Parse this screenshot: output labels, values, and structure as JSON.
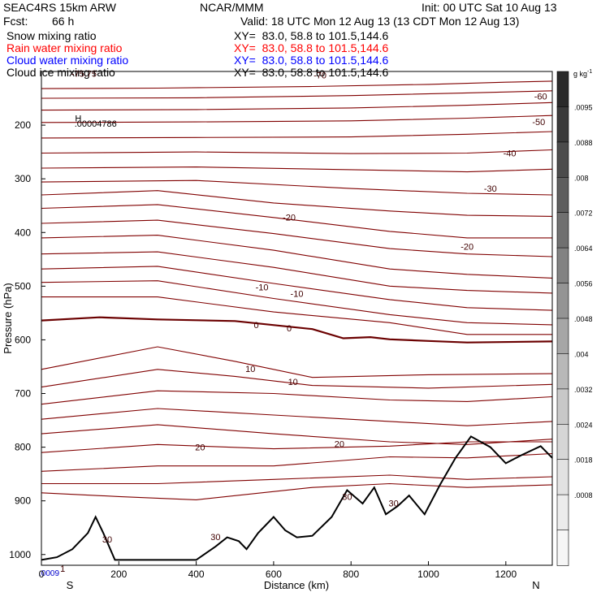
{
  "header": {
    "model": "SEAC4RS 15km ARW",
    "org": "NCAR/MMM",
    "init": "Init: 00 UTC Sat 10 Aug 13",
    "fcst_label": "Fcst:",
    "fcst_value": "66 h",
    "valid": "Valid: 18 UTC Mon 12 Aug 13 (13 CDT Mon 12 Aug 13)",
    "fields": [
      {
        "name": "Snow mixing ratio",
        "xy": "XY=  83.0, 58.8 to 101.5,144.6",
        "color": "#000000"
      },
      {
        "name": "Rain water mixing ratio",
        "xy": "XY=  83.0, 58.8 to 101.5,144.6",
        "color": "#ff0000"
      },
      {
        "name": "Cloud water mixing ratio",
        "xy": "XY=  83.0, 58.8 to 101.5,144.6",
        "color": "#0000ff"
      },
      {
        "name": "Cloud ice mixing ratio",
        "xy": "XY=  83.0, 58.8 to 101.5,144.6",
        "color": "#000000"
      }
    ]
  },
  "chart_data": {
    "type": "cross-section contour",
    "xlabel": "Distance (km)",
    "ylabel": "Pressure (hPa)",
    "x_range": [
      0,
      1320
    ],
    "y_range": [
      1020,
      100
    ],
    "x_ticks": [
      0,
      200,
      400,
      600,
      800,
      1000,
      1200
    ],
    "y_ticks": [
      1000,
      900,
      800,
      700,
      600,
      500,
      400,
      300,
      200
    ],
    "x_ticks_labels": [
      "0",
      "200",
      "400",
      "600",
      "800",
      "1000",
      "1200"
    ],
    "y_ticks_labels": [
      "1000",
      "900",
      "800",
      "700",
      "600",
      "500",
      "400",
      "300",
      "200"
    ],
    "endpoints": {
      "left": "S",
      "right": "N"
    },
    "temperature_contour_color": "#800000",
    "contour_labels": [
      {
        "text": "-75.75",
        "x": 110,
        "p": 110
      },
      {
        "text": "-70",
        "x": 720,
        "p": 113
      },
      {
        "text": "-60",
        "x": 1290,
        "p": 152
      },
      {
        "text": "-50",
        "x": 1285,
        "p": 200
      },
      {
        "text": "-40",
        "x": 1210,
        "p": 258
      },
      {
        "text": "-30",
        "x": 1160,
        "p": 324
      },
      {
        "text": "-20",
        "x": 640,
        "p": 378
      },
      {
        "text": "-20",
        "x": 1100,
        "p": 432
      },
      {
        "text": "-10",
        "x": 570,
        "p": 508
      },
      {
        "text": "-10",
        "x": 660,
        "p": 520
      },
      {
        "text": "0",
        "x": 555,
        "p": 578
      },
      {
        "text": "0",
        "x": 640,
        "p": 584
      },
      {
        "text": "10",
        "x": 540,
        "p": 660
      },
      {
        "text": "10",
        "x": 650,
        "p": 684
      },
      {
        "text": "20",
        "x": 410,
        "p": 806
      },
      {
        "text": "20",
        "x": 770,
        "p": 800
      },
      {
        "text": "30",
        "x": 790,
        "p": 898
      },
      {
        "text": "30",
        "x": 910,
        "p": 910
      },
      {
        "text": "30",
        "x": 450,
        "p": 973
      },
      {
        "text": "30",
        "x": 170,
        "p": 978
      },
      {
        "text": ".00004786",
        "x": 140,
        "p": 203
      },
      {
        "text": "H",
        "x": 95,
        "p": 193
      },
      {
        "text": "1",
        "x": 55,
        "p": 1032
      }
    ],
    "small_blue_labels": [
      {
        "text": ".0009",
        "x": 20,
        "p": 1040
      }
    ],
    "colorbar": {
      "unit": "g kg",
      "unit_exp": "-1",
      "labels": [
        ".0095",
        ".0088",
        ".008",
        ".0072",
        ".0064",
        ".0056",
        ".0048",
        ".004",
        ".0032",
        ".0024",
        ".0018",
        ".0008"
      ],
      "colors": [
        "#2a2a2a",
        "#3a3a3a",
        "#4c4c4c",
        "#5e5e5e",
        "#707070",
        "#828282",
        "#949494",
        "#a6a6a6",
        "#b8b8b8",
        "#c8c8c8",
        "#d6d6d6",
        "#e2e2e2",
        "#ececec",
        "#f6f6f6"
      ]
    }
  }
}
